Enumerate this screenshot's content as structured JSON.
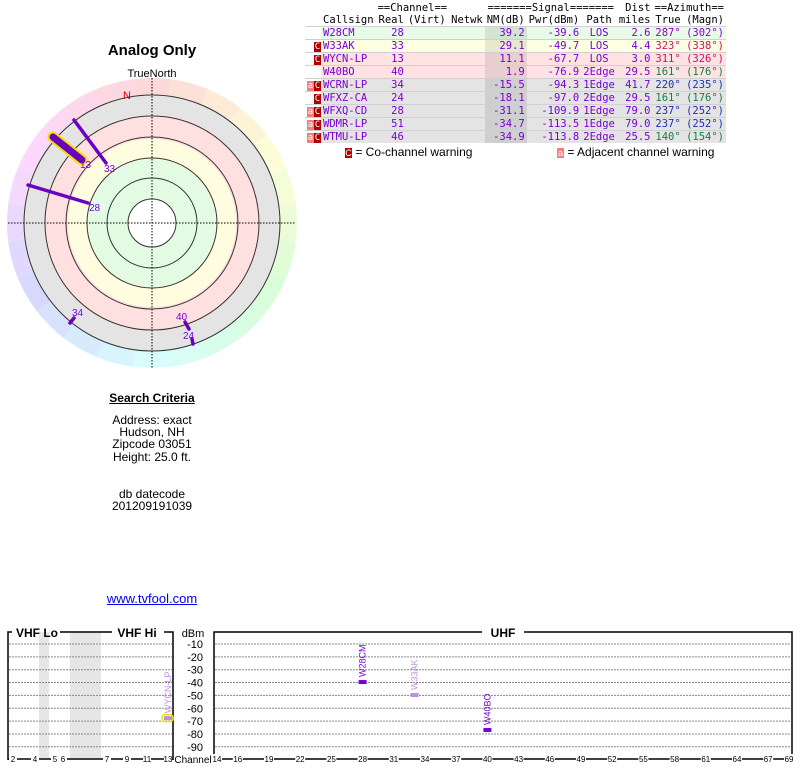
{
  "radar": {
    "title": "Analog Only",
    "north_label": "TrueNorth",
    "magnetic_north": "N"
  },
  "criteria": {
    "heading": "Search Criteria",
    "lines": [
      "Address: exact",
      "Hudson, NH",
      "Zipcode 03051",
      "Height: 25.0 ft."
    ],
    "db_label": "db datecode",
    "db_value": "201209191039"
  },
  "link": "www.tvfool.com",
  "table": {
    "group_headers": {
      "channel": "==Channel==",
      "signal": "=======Signal=======",
      "dist": "Dist",
      "azimuth": "==Azimuth=="
    },
    "headers": [
      "Callsign",
      "Real",
      "(Virt)",
      "Netwk",
      "NM(dB)",
      "Pwr(dBm)",
      "Path",
      "miles",
      "True",
      "(Magn)"
    ],
    "rows": [
      {
        "warn": "",
        "callsign": "W28CM",
        "real": "28",
        "virt": "",
        "netwk": "",
        "nm": "39.2",
        "pwr": "-39.6",
        "path": "LOS",
        "dist": "2.6",
        "true": "287°",
        "magn": "(302°)",
        "bg": "#e8fbe8",
        "azcolor": "#8a00d0"
      },
      {
        "warn": "C",
        "callsign": "W33AK",
        "real": "33",
        "virt": "",
        "netwk": "",
        "nm": "29.1",
        "pwr": "-49.7",
        "path": "LOS",
        "dist": "4.4",
        "true": "323°",
        "magn": "(338°)",
        "bg": "#ffffe2",
        "azcolor": "#d0106a"
      },
      {
        "warn": "C",
        "callsign": "WYCN-LP",
        "real": "13",
        "virt": "",
        "netwk": "",
        "nm": "11.1",
        "pwr": "-67.7",
        "path": "LOS",
        "dist": "3.0",
        "true": "311°",
        "magn": "(326°)",
        "bg": "#ffe2e2",
        "azcolor": "#d0106a"
      },
      {
        "warn": "",
        "callsign": "W40BO",
        "real": "40",
        "virt": "",
        "netwk": "",
        "nm": "1.9",
        "pwr": "-76.9",
        "path": "2Edge",
        "dist": "29.5",
        "true": "161°",
        "magn": "(176°)",
        "bg": "#ffe2e2",
        "azcolor": "#108048"
      },
      {
        "warn": "aC",
        "callsign": "WCRN-LP",
        "real": "34",
        "virt": "",
        "netwk": "",
        "nm": "-15.5",
        "pwr": "-94.3",
        "path": "1Edge",
        "dist": "41.7",
        "true": "220°",
        "magn": "(235°)",
        "bg": "#e4e4e4",
        "azcolor": "#2030b0"
      },
      {
        "warn": "C",
        "callsign": "WFXZ-CA",
        "real": "24",
        "virt": "",
        "netwk": "",
        "nm": "-18.1",
        "pwr": "-97.0",
        "path": "2Edge",
        "dist": "29.5",
        "true": "161°",
        "magn": "(176°)",
        "bg": "#e4e4e4",
        "azcolor": "#108048"
      },
      {
        "warn": "aC",
        "callsign": "WFXQ-CD",
        "real": "28",
        "virt": "",
        "netwk": "",
        "nm": "-31.1",
        "pwr": "-109.9",
        "path": "1Edge",
        "dist": "79.0",
        "true": "237°",
        "magn": "(252°)",
        "bg": "#e4e4e4",
        "azcolor": "#2030b0"
      },
      {
        "warn": "aC",
        "callsign": "WDMR-LP",
        "real": "51",
        "virt": "",
        "netwk": "",
        "nm": "-34.7",
        "pwr": "-113.5",
        "path": "1Edge",
        "dist": "79.0",
        "true": "237°",
        "magn": "(252°)",
        "bg": "#e4e4e4",
        "azcolor": "#2030b0"
      },
      {
        "warn": "aC",
        "callsign": "WTMU-LP",
        "real": "46",
        "virt": "",
        "netwk": "",
        "nm": "-34.9",
        "pwr": "-113.8",
        "path": "2Edge",
        "dist": "25.5",
        "true": "140°",
        "magn": "(154°)",
        "bg": "#e4e4e4",
        "azcolor": "#108048"
      }
    ],
    "legend": {
      "co": "= Co-channel warning",
      "adj": "= Adjacent channel warning",
      "co_badge": "C",
      "adj_badge": "a"
    }
  },
  "chart_data": {
    "type": "bar",
    "sections": [
      "VHF Lo",
      "VHF Hi",
      "UHF"
    ],
    "ylabel": "dBm",
    "xlabel": "Channel",
    "yticks": [
      "-10",
      "-20",
      "-30",
      "-40",
      "-50",
      "-60",
      "-70",
      "-80",
      "-90"
    ],
    "vhf_ticks": [
      "2",
      "4",
      "5",
      "6",
      "7",
      "9",
      "11",
      "13"
    ],
    "uhf_ticks": [
      "14",
      "16",
      "19",
      "22",
      "25",
      "28",
      "31",
      "34",
      "37",
      "40",
      "43",
      "46",
      "49",
      "52",
      "55",
      "58",
      "61",
      "64",
      "67",
      "69"
    ],
    "ylim": [
      -95,
      -5
    ],
    "stations": [
      {
        "callsign": "W28CM",
        "channel": 28,
        "pwr": -39.6,
        "color": "#7a00d4"
      },
      {
        "callsign": "W33AK",
        "channel": 33,
        "pwr": -49.7,
        "color": "#c090e0"
      },
      {
        "callsign": "WYCN-LP",
        "channel": 13,
        "pwr": -67.7,
        "color": "#c090e0",
        "highlight": true
      },
      {
        "callsign": "W40BO",
        "channel": 40,
        "pwr": -76.9,
        "color": "#7a00d4"
      }
    ]
  }
}
